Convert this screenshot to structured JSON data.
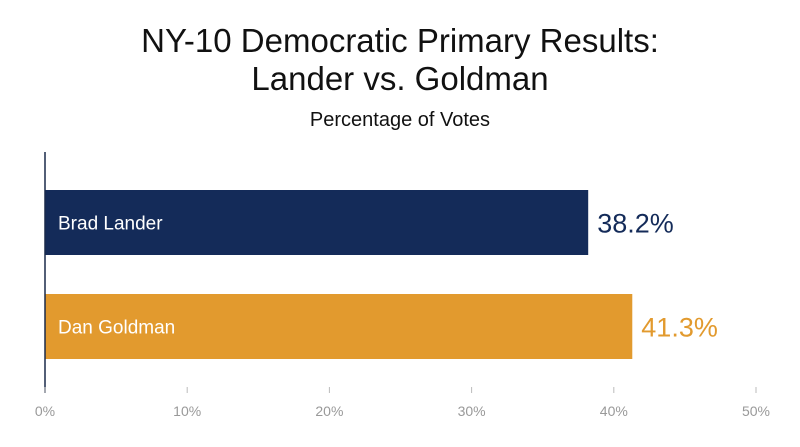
{
  "chart_data": {
    "type": "bar",
    "orientation": "horizontal",
    "title": [
      "NY-10 Democratic Primary Results:",
      "Lander vs. Goldman"
    ],
    "subtitle": "Percentage of Votes",
    "categories": [
      "Brad Lander",
      "Dan Goldman"
    ],
    "values": [
      38.2,
      41.3
    ],
    "value_labels": [
      "38.2%",
      "41.3%"
    ],
    "colors": [
      "#142b59",
      "#e29a2e"
    ],
    "xlim": [
      0,
      50
    ],
    "xticks": [
      0,
      10,
      20,
      30,
      40,
      50
    ],
    "xtick_labels": [
      "0%",
      "10%",
      "20%",
      "30%",
      "40%",
      "50%"
    ],
    "grid": false,
    "legend": "none"
  }
}
